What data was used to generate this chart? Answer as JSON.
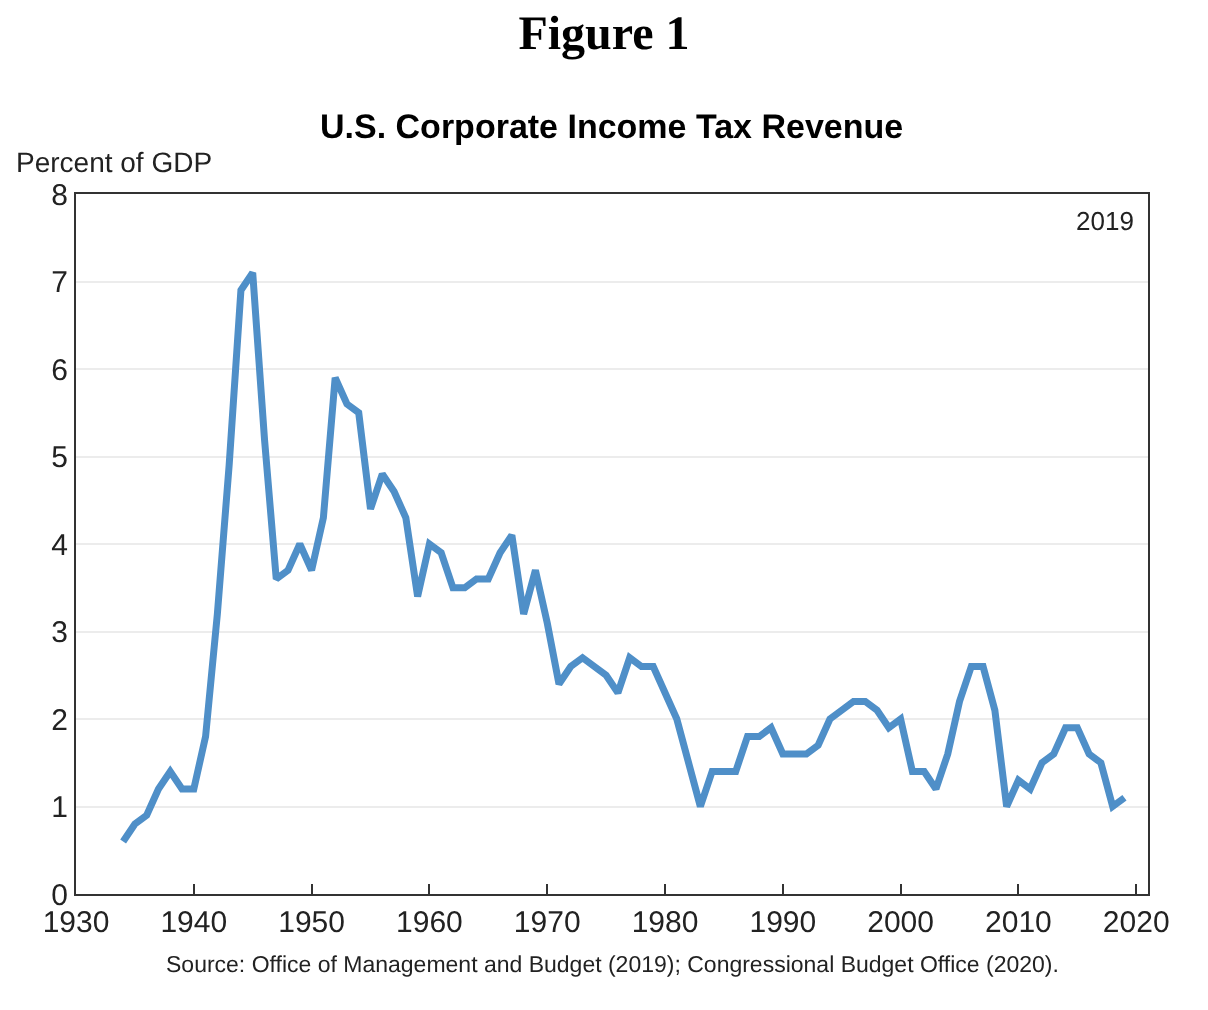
{
  "chart_data": {
    "type": "line",
    "title": "Figure 1",
    "subtitle": "U.S. Corporate Income Tax Revenue",
    "ylabel": "Percent of GDP",
    "x": [
      1934,
      1935,
      1936,
      1937,
      1938,
      1939,
      1940,
      1941,
      1942,
      1943,
      1944,
      1945,
      1946,
      1947,
      1948,
      1949,
      1950,
      1951,
      1952,
      1953,
      1954,
      1955,
      1956,
      1957,
      1958,
      1959,
      1960,
      1961,
      1962,
      1963,
      1964,
      1965,
      1966,
      1967,
      1968,
      1969,
      1970,
      1971,
      1972,
      1973,
      1974,
      1975,
      1976,
      1977,
      1978,
      1979,
      1980,
      1981,
      1982,
      1983,
      1984,
      1985,
      1986,
      1987,
      1988,
      1989,
      1990,
      1991,
      1992,
      1993,
      1994,
      1995,
      1996,
      1997,
      1998,
      1999,
      2000,
      2001,
      2002,
      2003,
      2004,
      2005,
      2006,
      2007,
      2008,
      2009,
      2010,
      2011,
      2012,
      2013,
      2014,
      2015,
      2016,
      2017,
      2018,
      2019
    ],
    "series": [
      {
        "color": "#4f8fc8",
        "values": [
          0.6,
          0.8,
          0.9,
          1.2,
          1.4,
          1.2,
          1.2,
          1.8,
          3.2,
          4.9,
          6.9,
          7.1,
          5.2,
          3.6,
          3.7,
          4.0,
          3.7,
          4.3,
          5.9,
          5.6,
          5.5,
          4.4,
          4.8,
          4.6,
          4.3,
          3.4,
          4.0,
          3.9,
          3.5,
          3.5,
          3.6,
          3.6,
          3.9,
          4.1,
          3.2,
          3.7,
          3.1,
          2.4,
          2.6,
          2.7,
          2.6,
          2.5,
          2.3,
          2.7,
          2.6,
          2.6,
          2.3,
          2.0,
          1.5,
          1.0,
          1.4,
          1.4,
          1.4,
          1.8,
          1.8,
          1.9,
          1.6,
          1.6,
          1.6,
          1.7,
          2.0,
          2.1,
          2.2,
          2.2,
          2.1,
          1.9,
          2.0,
          1.4,
          1.4,
          1.2,
          1.6,
          2.2,
          2.6,
          2.6,
          2.1,
          1.0,
          1.3,
          1.2,
          1.5,
          1.6,
          1.9,
          1.9,
          1.6,
          1.5,
          1.0,
          1.1
        ]
      }
    ],
    "xlim": [
      1930,
      2021
    ],
    "xticks": [
      1930,
      1940,
      1950,
      1960,
      1970,
      1980,
      1990,
      2000,
      2010,
      2020
    ],
    "ylim": [
      0,
      8
    ],
    "yticks": [
      0,
      1,
      2,
      3,
      4,
      5,
      6,
      7,
      8
    ],
    "grid": "y",
    "marker": "none",
    "line_style": "solid",
    "annotations": [
      "2019",
      "Source: Office of Management and Budget (2019); Congressional Budget Office (2020)."
    ]
  }
}
